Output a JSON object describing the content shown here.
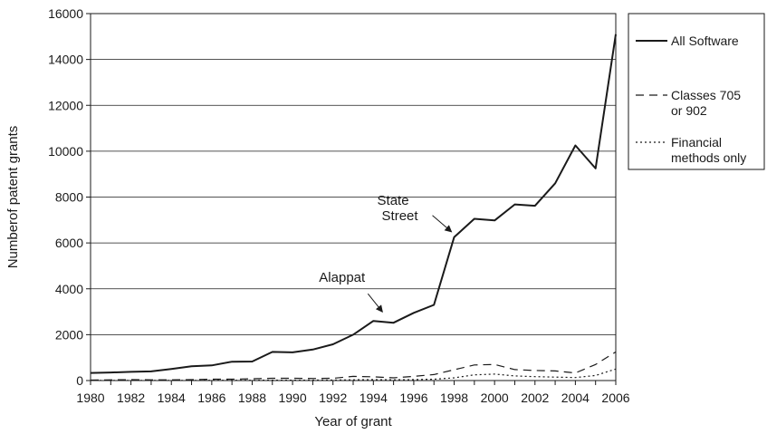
{
  "chart_data": {
    "type": "line",
    "title": "",
    "xlabel": "Year of grant",
    "ylabel": "Numberof patent grants",
    "xlim": [
      1980,
      2006
    ],
    "ylim": [
      0,
      16000
    ],
    "x_ticks": [
      "1980",
      "1982",
      "1984",
      "1986",
      "1988",
      "1990",
      "1992",
      "1994",
      "1996",
      "1998",
      "2000",
      "2002",
      "2004",
      "2006"
    ],
    "y_ticks": [
      "0",
      "2000",
      "4000",
      "6000",
      "8000",
      "10000",
      "12000",
      "14000",
      "16000"
    ],
    "grid": "horizontal",
    "legend_position": "right",
    "x": [
      1980,
      1981,
      1982,
      1983,
      1984,
      1985,
      1986,
      1987,
      1988,
      1989,
      1990,
      1991,
      1992,
      1993,
      1994,
      1995,
      1996,
      1997,
      1998,
      1999,
      2000,
      2001,
      2002,
      2003,
      2004,
      2005,
      2006
    ],
    "series": [
      {
        "name": "All Software",
        "style": "solid",
        "values": [
          330,
          350,
          380,
          400,
          500,
          620,
          660,
          820,
          830,
          1250,
          1230,
          1350,
          1580,
          2000,
          2600,
          2520,
          2950,
          3300,
          6250,
          7050,
          6980,
          7680,
          7620,
          8600,
          10250,
          9250,
          15100
        ]
      },
      {
        "name": "Classes 705 or 902",
        "style": "dashed",
        "values": [
          20,
          30,
          40,
          30,
          30,
          40,
          60,
          60,
          80,
          100,
          100,
          90,
          100,
          180,
          160,
          120,
          180,
          260,
          470,
          680,
          700,
          480,
          440,
          420,
          330,
          700,
          1250
        ]
      },
      {
        "name": "Financial methods only",
        "style": "dotted",
        "values": [
          5,
          5,
          5,
          5,
          5,
          5,
          10,
          10,
          10,
          15,
          15,
          20,
          20,
          30,
          40,
          30,
          40,
          60,
          120,
          250,
          280,
          200,
          170,
          150,
          130,
          220,
          500
        ]
      }
    ],
    "annotations": [
      {
        "text": "Alappat",
        "x": 1994,
        "y": 2600
      },
      {
        "lines": [
          "State",
          "Street"
        ],
        "x": 1998,
        "y": 6250
      }
    ]
  }
}
